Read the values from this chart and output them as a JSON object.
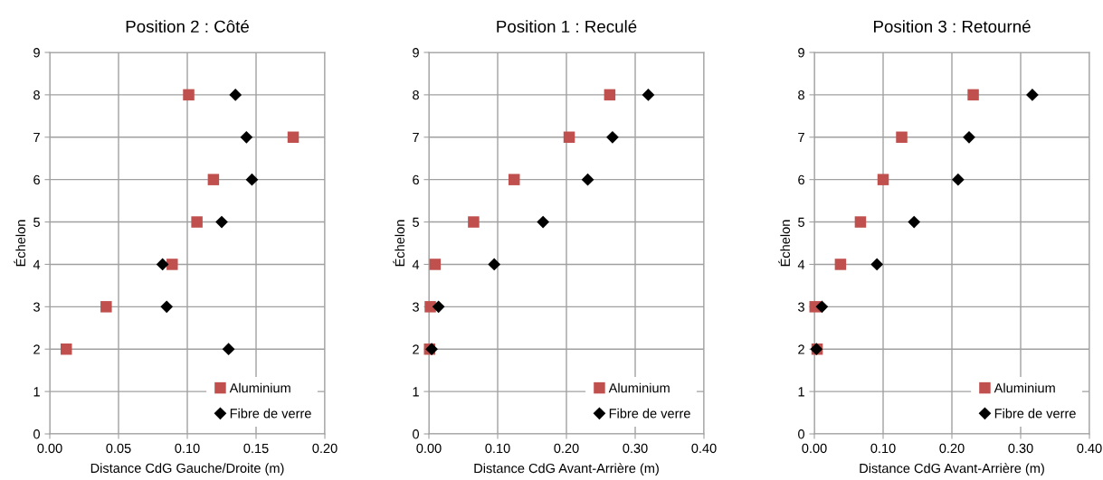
{
  "chart_data": [
    {
      "type": "scatter",
      "title": "Position 2 : Côté",
      "xlabel": "Distance CdG Gauche/Droite (m)",
      "ylabel": "Échelon",
      "xlim": [
        0,
        0.2
      ],
      "xticks": [
        {
          "value": 0,
          "label": "0.00"
        },
        {
          "value": 0.05,
          "label": "0.05"
        },
        {
          "value": 0.1,
          "label": "0.10"
        },
        {
          "value": 0.15,
          "label": "0.15"
        },
        {
          "value": 0.2,
          "label": "0.20"
        }
      ],
      "ylim": [
        0,
        9
      ],
      "yticks": [
        0,
        1,
        2,
        3,
        4,
        5,
        6,
        7,
        8,
        9
      ],
      "grid": true,
      "legend": "bottom right",
      "series": [
        {
          "name": "Aluminium",
          "color": "#c0504d",
          "marker": "square",
          "x": [
            0.012,
            0.041,
            0.089,
            0.107,
            0.119,
            0.177,
            0.101
          ],
          "values": [
            2,
            3,
            4,
            5,
            6,
            7,
            8
          ]
        },
        {
          "name": "Fibre de verre",
          "color": "#000000",
          "marker": "diamond",
          "x": [
            0.13,
            0.085,
            0.082,
            0.125,
            0.147,
            0.143,
            0.135
          ],
          "values": [
            2,
            3,
            4,
            5,
            6,
            7,
            8
          ]
        }
      ]
    },
    {
      "type": "scatter",
      "title": "Position 1 : Reculé",
      "xlabel": "Distance CdG Avant-Arrière (m)",
      "ylabel": "Échelon",
      "xlim": [
        0,
        0.4
      ],
      "xticks": [
        {
          "value": 0,
          "label": "0.00"
        },
        {
          "value": 0.1,
          "label": "0.10"
        },
        {
          "value": 0.2,
          "label": "0.20"
        },
        {
          "value": 0.3,
          "label": "0.30"
        },
        {
          "value": 0.4,
          "label": "0.40"
        }
      ],
      "ylim": [
        0,
        9
      ],
      "yticks": [
        0,
        1,
        2,
        3,
        4,
        5,
        6,
        7,
        8,
        9
      ],
      "grid": true,
      "legend": "bottom right",
      "series": [
        {
          "name": "Aluminium",
          "color": "#c0504d",
          "marker": "square",
          "x": [
            0.001,
            0.002,
            0.009,
            0.065,
            0.124,
            0.204,
            0.263
          ],
          "values": [
            2,
            3,
            4,
            5,
            6,
            7,
            8
          ]
        },
        {
          "name": "Fibre de verre",
          "color": "#000000",
          "marker": "diamond",
          "x": [
            0.004,
            0.014,
            0.095,
            0.166,
            0.231,
            0.267,
            0.319
          ],
          "values": [
            2,
            3,
            4,
            5,
            6,
            7,
            8
          ]
        }
      ]
    },
    {
      "type": "scatter",
      "title": "Position 3 : Retourné",
      "xlabel": "Distance CdG Avant-Arrière (m)",
      "ylabel": "Échelon",
      "xlim": [
        0,
        0.4
      ],
      "xticks": [
        {
          "value": 0,
          "label": "0.00"
        },
        {
          "value": 0.1,
          "label": "0.10"
        },
        {
          "value": 0.2,
          "label": "0.20"
        },
        {
          "value": 0.3,
          "label": "0.30"
        },
        {
          "value": 0.4,
          "label": "0.40"
        }
      ],
      "ylim": [
        0,
        9
      ],
      "yticks": [
        0,
        1,
        2,
        3,
        4,
        5,
        6,
        7,
        8,
        9
      ],
      "grid": true,
      "legend": "bottom right",
      "series": [
        {
          "name": "Aluminium",
          "color": "#c0504d",
          "marker": "square",
          "x": [
            0.004,
            0.001,
            0.038,
            0.067,
            0.1,
            0.127,
            0.231
          ],
          "values": [
            2,
            3,
            4,
            5,
            6,
            7,
            8
          ]
        },
        {
          "name": "Fibre de verre",
          "color": "#000000",
          "marker": "diamond",
          "x": [
            0.003,
            0.011,
            0.091,
            0.145,
            0.209,
            0.225,
            0.317
          ],
          "values": [
            2,
            3,
            4,
            5,
            6,
            7,
            8
          ]
        }
      ]
    }
  ]
}
